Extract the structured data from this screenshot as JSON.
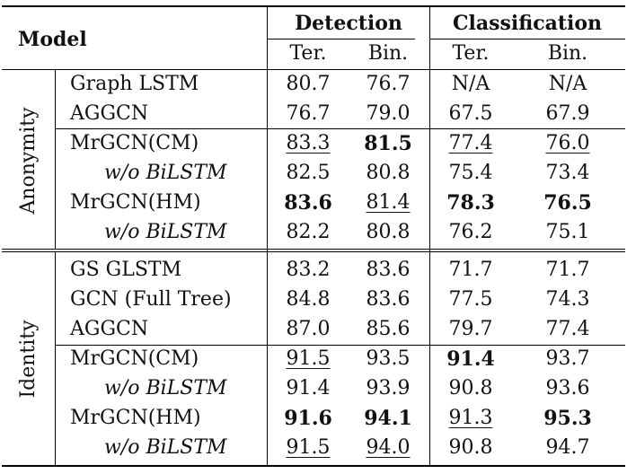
{
  "header": {
    "model": "Model",
    "detection": "Detection",
    "classification": "Classification",
    "sub": [
      "Ter.",
      "Bin.",
      "Ter.",
      "Bin."
    ]
  },
  "groups": [
    {
      "label": "Anonymity",
      "rows": [
        {
          "model": "Graph LSTM",
          "vals": [
            "80.7",
            "76.7",
            "N/A",
            "N/A"
          ],
          "fmt": [
            "",
            "",
            "",
            ""
          ]
        },
        {
          "model": "AGGCN",
          "vals": [
            "76.7",
            "79.0",
            "67.5",
            "67.9"
          ],
          "fmt": [
            "",
            "",
            "",
            ""
          ]
        },
        {
          "model": "MrGCN(CM)",
          "vals": [
            "83.3",
            "81.5",
            "77.4",
            "76.0"
          ],
          "fmt": [
            "u",
            "b",
            "u",
            "u"
          ]
        },
        {
          "model": "w/o BiLSTM",
          "italic": true,
          "vals": [
            "82.5",
            "80.8",
            "75.4",
            "73.4"
          ],
          "fmt": [
            "",
            "",
            "",
            ""
          ]
        },
        {
          "model": "MrGCN(HM)",
          "vals": [
            "83.6",
            "81.4",
            "78.3",
            "76.5"
          ],
          "fmt": [
            "b",
            "u",
            "b",
            "b"
          ]
        },
        {
          "model": "w/o BiLSTM",
          "italic": true,
          "vals": [
            "82.2",
            "80.8",
            "76.2",
            "75.1"
          ],
          "fmt": [
            "",
            "",
            "",
            ""
          ]
        }
      ]
    },
    {
      "label": "Identity",
      "rows": [
        {
          "model": "GS GLSTM",
          "vals": [
            "83.2",
            "83.6",
            "71.7",
            "71.7"
          ],
          "fmt": [
            "",
            "",
            "",
            ""
          ]
        },
        {
          "model": "GCN (Full Tree)",
          "vals": [
            "84.8",
            "83.6",
            "77.5",
            "74.3"
          ],
          "fmt": [
            "",
            "",
            "",
            ""
          ]
        },
        {
          "model": "AGGCN",
          "vals": [
            "87.0",
            "85.6",
            "79.7",
            "77.4"
          ],
          "fmt": [
            "",
            "",
            "",
            ""
          ]
        },
        {
          "model": "MrGCN(CM)",
          "vals": [
            "91.5",
            "93.5",
            "91.4",
            "93.7"
          ],
          "fmt": [
            "u",
            "",
            "b",
            ""
          ]
        },
        {
          "model": "w/o BiLSTM",
          "italic": true,
          "vals": [
            "91.4",
            "93.9",
            "90.8",
            "93.6"
          ],
          "fmt": [
            "",
            "",
            "",
            ""
          ]
        },
        {
          "model": "MrGCN(HM)",
          "vals": [
            "91.6",
            "94.1",
            "91.3",
            "95.3"
          ],
          "fmt": [
            "b",
            "b",
            "u",
            "b"
          ]
        },
        {
          "model": "w/o BiLSTM",
          "italic": true,
          "vals": [
            "91.5",
            "94.0",
            "90.8",
            "94.7"
          ],
          "fmt": [
            "u",
            "u",
            "",
            ""
          ]
        }
      ]
    }
  ]
}
